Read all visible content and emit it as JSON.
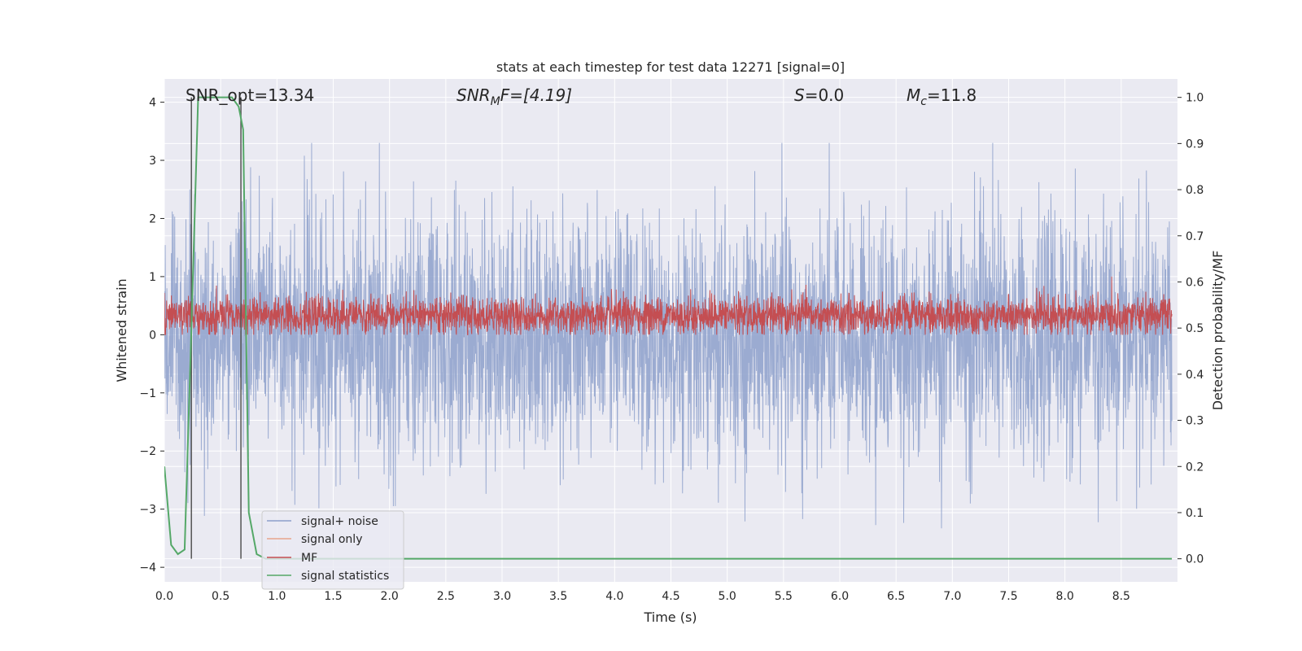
{
  "chart_data": {
    "type": "line",
    "title": "stats at each timestep for test data 12271 [signal=0]",
    "xlabel": "Time (s)",
    "ylabel_left": "Whitened strain",
    "ylabel_right": "Detection probability/MF",
    "xlim": [
      0.0,
      9.0
    ],
    "ylim_left": [
      -4.25,
      4.4
    ],
    "ylim_right": [
      -0.05,
      1.04
    ],
    "xticks": [
      "0.0",
      "0.5",
      "1.0",
      "1.5",
      "2.0",
      "2.5",
      "3.0",
      "3.5",
      "4.0",
      "4.5",
      "5.0",
      "5.5",
      "6.0",
      "6.5",
      "7.0",
      "7.5",
      "8.0",
      "8.5"
    ],
    "yticks_left": [
      "4",
      "3",
      "2",
      "1",
      "0",
      "−1",
      "−2",
      "−3",
      "−4"
    ],
    "yticks_right": [
      "1.0",
      "0.9",
      "0.8",
      "0.7",
      "0.6",
      "0.5",
      "0.4",
      "0.3",
      "0.2",
      "0.1",
      "0.0"
    ],
    "grid": true,
    "legend_position": "bottom-left",
    "annotations": {
      "snr_opt": "SNR_opt=13.34",
      "snr_mf_main": "SNR",
      "snr_mf_sub": "M",
      "snr_mf_rest": "F=[4.19]",
      "s_var": "S",
      "s_value": "=0.0",
      "mc_var": "M",
      "mc_sub": "c",
      "mc_value": "=11.8"
    },
    "series": [
      {
        "name": "signal+ noise",
        "color": "#8da0cb",
        "description_axis": "left",
        "amplitude_range": [
          -3.9,
          3.3
        ]
      },
      {
        "name": "signal only",
        "color": "#e8a58c",
        "description_axis": "left"
      },
      {
        "name": "MF",
        "color": "#c44e52",
        "description_axis": "left",
        "amplitude_range": [
          0.0,
          1.0
        ]
      },
      {
        "name": "signal statistics",
        "color": "#55a868",
        "description_axis": "right",
        "x": [
          0.0,
          0.06,
          0.12,
          0.18,
          0.24,
          0.3,
          0.36,
          0.42,
          0.48,
          0.54,
          0.6,
          0.66,
          0.7,
          0.75,
          0.82,
          0.9,
          1.0,
          1.5,
          2.0,
          3.0,
          4.0,
          5.0,
          6.0,
          7.0,
          8.0,
          8.95
        ],
        "y": [
          0.2,
          0.03,
          0.01,
          0.02,
          0.5,
          1.0,
          1.0,
          1.0,
          1.0,
          1.0,
          1.0,
          0.98,
          0.93,
          0.1,
          0.01,
          0.0,
          0.0,
          0.0,
          0.0,
          0.0,
          0.0,
          0.0,
          0.0,
          0.0,
          0.0,
          0.0
        ]
      }
    ],
    "vertical_markers_x": [
      0.24,
      0.68
    ]
  }
}
